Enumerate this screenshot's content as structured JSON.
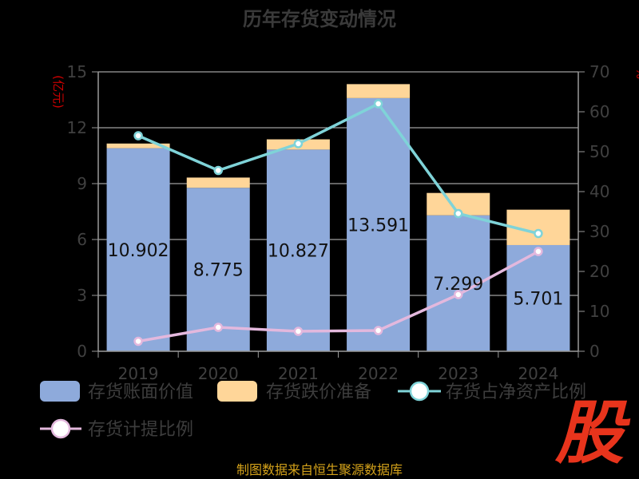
{
  "title": "历年存货变动情况",
  "source": "制图数据来自恒生聚源数据库",
  "stamp": "股",
  "colors": {
    "book_value": "#8eaadb",
    "provision": "#ffd699",
    "ratio_net_assets": "#7fd3d8",
    "provision_ratio": "#e3b8dd",
    "grid": "#c8c8c8",
    "axis": "#9a9a9a"
  },
  "chart_data": {
    "type": "bar",
    "title": "历年存货变动情况",
    "categories": [
      "2019",
      "2020",
      "2021",
      "2022",
      "2023",
      "2024"
    ],
    "y_left": {
      "label": "(亿元)",
      "ylim": [
        0,
        15
      ],
      "ticks": [
        0,
        3,
        6,
        9,
        12,
        15
      ]
    },
    "y_right": {
      "label": "%",
      "ylim": [
        0,
        70
      ],
      "ticks": [
        0,
        10,
        20,
        30,
        40,
        50,
        60,
        70
      ]
    },
    "grid": true,
    "legend_position": "bottom",
    "stacked": true,
    "series": [
      {
        "name": "存货账面价值",
        "type": "bar",
        "axis": "left",
        "values": [
          10.902,
          8.775,
          10.827,
          13.591,
          7.299,
          5.701
        ],
        "labels": [
          "10.902",
          "8.775",
          "10.827",
          "13.591",
          "7.299",
          "5.701"
        ]
      },
      {
        "name": "存货跌价准备",
        "type": "bar",
        "axis": "left",
        "values": [
          0.25,
          0.55,
          0.55,
          0.75,
          1.2,
          1.9
        ]
      },
      {
        "name": "存货占净资产比例",
        "type": "line",
        "axis": "right",
        "values": [
          54,
          45.3,
          52,
          62,
          34.5,
          29.5
        ]
      },
      {
        "name": "存货计提比例",
        "type": "line",
        "axis": "right",
        "values": [
          2.5,
          6,
          5,
          5.2,
          14.2,
          25
        ]
      }
    ]
  }
}
